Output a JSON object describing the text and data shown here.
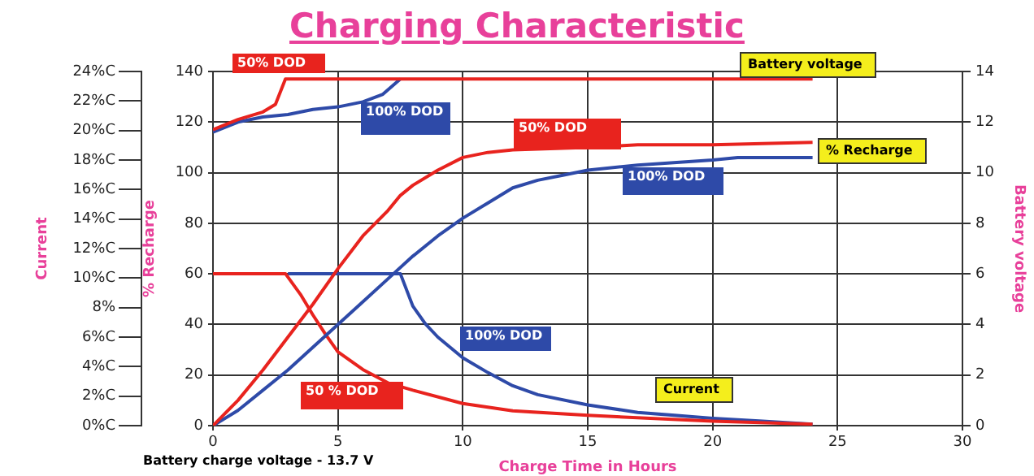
{
  "chart_data": {
    "type": "line",
    "title": "Charging Characteristic",
    "xlabel": "Charge Time in Hours",
    "ylabel": "% Recharge",
    "y2label": "Battery voltage",
    "y3label": "Current",
    "xlim": [
      0,
      30
    ],
    "xticks": [
      0,
      5,
      10,
      15,
      20,
      25,
      30
    ],
    "ylim": [
      0,
      140
    ],
    "yticks": [
      0,
      20,
      40,
      60,
      80,
      100,
      120,
      140
    ],
    "y2lim": [
      0,
      14
    ],
    "y2ticks": [
      0,
      2,
      4,
      6,
      8,
      10,
      12,
      14
    ],
    "y3lim": [
      0,
      24
    ],
    "y3ticks": [
      {
        "value": 0,
        "label": "0%C"
      },
      {
        "value": 2,
        "label": "2%C"
      },
      {
        "value": 4,
        "label": "4%C"
      },
      {
        "value": 6,
        "label": "6%C"
      },
      {
        "value": 8,
        "label": "8%"
      },
      {
        "value": 10,
        "label": "10%C"
      },
      {
        "value": 12,
        "label": "12%C"
      },
      {
        "value": 14,
        "label": "14%C"
      },
      {
        "value": 16,
        "label": "16%C"
      },
      {
        "value": 18,
        "label": "18%C"
      },
      {
        "value": 20,
        "label": "20%C"
      },
      {
        "value": 22,
        "label": "22%C"
      },
      {
        "value": 24,
        "label": "24%C"
      }
    ],
    "grid": true,
    "legend": false,
    "marker": "none",
    "line_style": "solid",
    "series": [
      {
        "name": "50% DOD",
        "color": "#e8231e",
        "axis": "y2",
        "x": [
          0,
          1,
          2,
          2.5,
          2.9,
          24
        ],
        "values": [
          11.7,
          12.1,
          12.4,
          12.7,
          13.7,
          13.7
        ]
      },
      {
        "name": "100% DOD",
        "color": "#2e4aa8",
        "axis": "y2",
        "x": [
          0,
          1,
          2,
          3,
          4,
          5,
          6,
          6.8,
          7.5
        ],
        "values": [
          11.6,
          12.0,
          12.2,
          12.3,
          12.5,
          12.6,
          12.8,
          13.1,
          13.7
        ]
      },
      {
        "name": "50% DOD",
        "color": "#e8231e",
        "x": [
          0,
          1,
          2,
          3,
          4,
          5,
          6,
          7,
          7.5,
          8,
          9,
          10,
          11,
          12,
          15,
          17,
          20,
          24
        ],
        "values": [
          0,
          10,
          22,
          35,
          48,
          62,
          75,
          85,
          91,
          95,
          101,
          106,
          108,
          109,
          110,
          111,
          111,
          112
        ]
      },
      {
        "name": "100% DOD",
        "color": "#2e4aa8",
        "x": [
          0,
          1,
          2,
          3,
          4,
          5,
          6,
          7,
          8,
          9,
          10,
          11,
          12,
          13,
          14,
          15,
          17,
          20,
          21,
          24
        ],
        "values": [
          0,
          6,
          14,
          22,
          31,
          40,
          49,
          58,
          67,
          75,
          82,
          88,
          94,
          97,
          99,
          101,
          103,
          105,
          106,
          106
        ]
      },
      {
        "name": "50 % DOD",
        "color": "#e8231e",
        "axis": "y3",
        "x": [
          0,
          2.9,
          3.5,
          4,
          4.5,
          5,
          6,
          7,
          8,
          10,
          12,
          15,
          20,
          24
        ],
        "values": [
          10.3,
          10.3,
          8.9,
          7.5,
          6.2,
          5.0,
          3.8,
          2.9,
          2.4,
          1.5,
          1.0,
          0.7,
          0.3,
          0.1
        ]
      },
      {
        "name": "100% DOD",
        "color": "#2e4aa8",
        "axis": "y3",
        "x": [
          3,
          7.5,
          8,
          8.5,
          9,
          10,
          11,
          12,
          13,
          15,
          17,
          20,
          22,
          24
        ],
        "values": [
          10.3,
          10.3,
          8.1,
          6.9,
          6.0,
          4.6,
          3.6,
          2.7,
          2.1,
          1.4,
          0.9,
          0.5,
          0.3,
          0.1
        ]
      }
    ],
    "annotations": [
      "Battery voltage",
      "% Recharge",
      "Current",
      "Battery charge voltage - 13.7 V"
    ]
  }
}
